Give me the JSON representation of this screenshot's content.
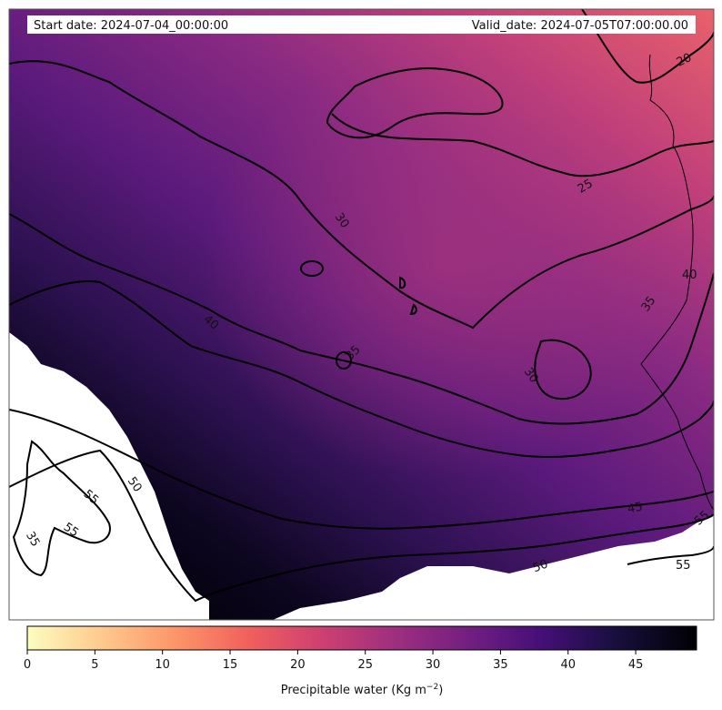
{
  "header": {
    "start_date": "Start date: 2024-07-04_00:00:00",
    "valid_date": "Valid_date: 2024-07-05T07:00:00.00"
  },
  "map": {
    "field": "precipitable water",
    "colormap": "magma_r",
    "contour_labels": [
      "20",
      "25",
      "30",
      "30",
      "35",
      "35",
      "35",
      "40",
      "40",
      "45",
      "50",
      "50",
      "55",
      "55",
      "55",
      "55"
    ]
  },
  "colorbar": {
    "ticks": [
      "0",
      "5",
      "10",
      "15",
      "20",
      "25",
      "30",
      "35",
      "40",
      "45"
    ],
    "range": [
      0,
      49.5
    ],
    "label_main": "Precipitable water (Kg m",
    "label_sup": "−2",
    "label_end": ")",
    "colors": [
      "#fcfdbf",
      "#feca8d",
      "#fd9668",
      "#f1605d",
      "#cd4071",
      "#9e2f7f",
      "#721f81",
      "#440f76",
      "#180f3d",
      "#000004"
    ]
  }
}
